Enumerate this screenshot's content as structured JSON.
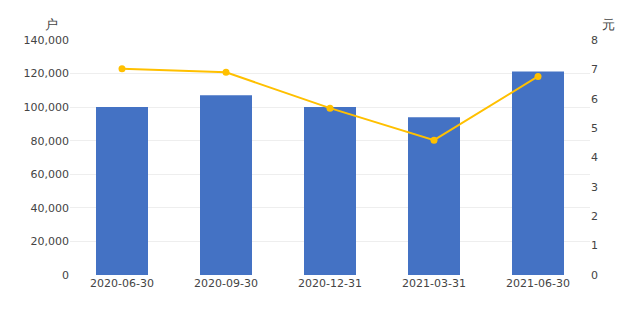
{
  "chart_data": {
    "type": "bar",
    "categories": [
      "2020-06-30",
      "2020-09-30",
      "2020-12-31",
      "2021-03-31",
      "2021-06-30"
    ],
    "series": [
      {
        "type": "bar",
        "color": "#4472C4",
        "values": [
          100016,
          107033,
          100016,
          94016,
          121266
        ]
      },
      {
        "type": "line",
        "axis": "y2",
        "color": "#FFC000",
        "marker": "circle",
        "line_style": "solid",
        "values": [
          7.02,
          6.9,
          5.68,
          4.59,
          6.76
        ]
      }
    ],
    "ylabel": "户",
    "y2label": "元",
    "ylim": [
      0,
      140000
    ],
    "yticks": [
      0,
      {
        "value": 20000,
        "label": "20,000"
      },
      {
        "value": 40000,
        "label": "40,000"
      },
      {
        "value": 60000,
        "label": "60,000"
      },
      {
        "value": 80000,
        "label": "80,000"
      },
      {
        "value": 100000,
        "label": "100,000"
      },
      {
        "value": 120000,
        "label": "120,000"
      },
      {
        "value": 140000,
        "label": "140,000"
      }
    ],
    "y2lim": [
      0,
      8
    ],
    "y2ticks": [
      0,
      1,
      2,
      3,
      4,
      5,
      6,
      7,
      8
    ],
    "grid": true
  }
}
